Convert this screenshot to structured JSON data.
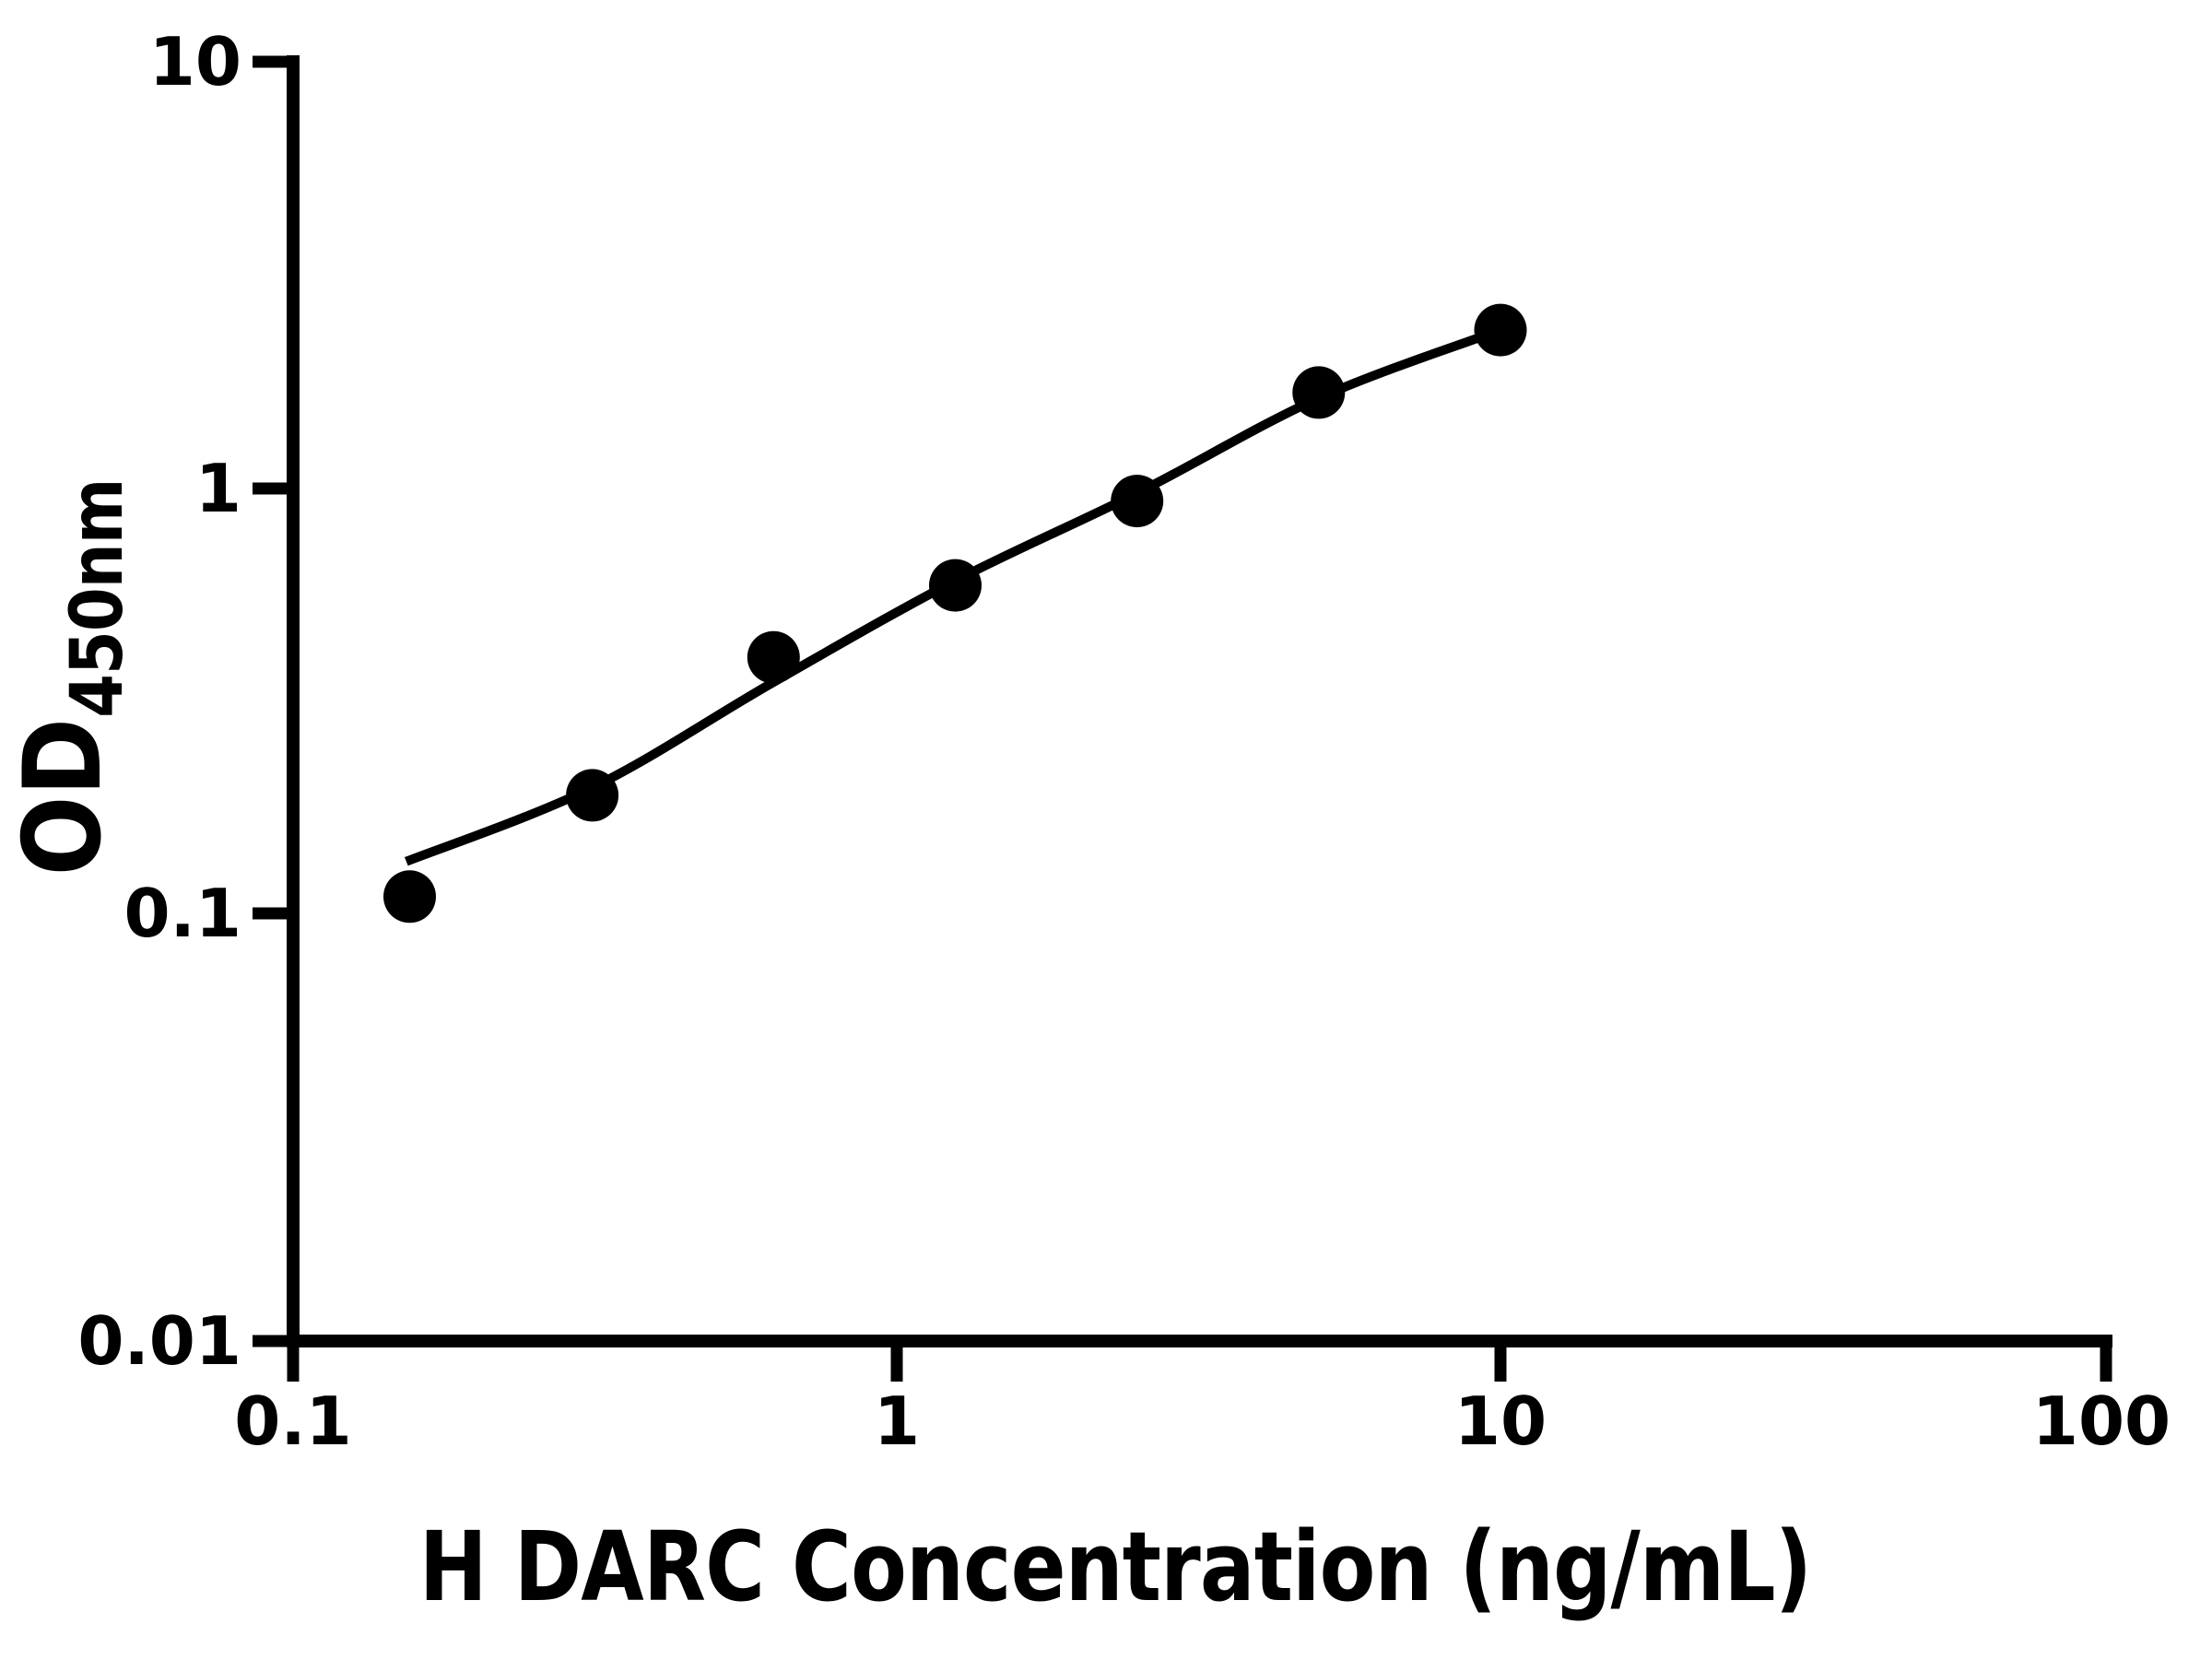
{
  "figure": {
    "background_color": "#ffffff",
    "ink_color": "#000000"
  },
  "chart_data": {
    "type": "scatter",
    "title": "",
    "xlabel": "H DARC Concentration (ng/mL)",
    "ylabel_main": "OD",
    "ylabel_sub": "450nm",
    "x_scale": "log",
    "y_scale": "log",
    "xlim": [
      0.1,
      100
    ],
    "ylim": [
      0.01,
      10
    ],
    "grid": "off",
    "legend": "none",
    "x_ticks": [
      "0.1",
      "1",
      "10",
      "100"
    ],
    "y_ticks": [
      "10",
      "1",
      "0.1",
      "0.01"
    ],
    "series": [
      {
        "name": "standard-points",
        "style": "filled-circle-markers",
        "color": "#000000",
        "x": [
          0.156,
          0.313,
          0.625,
          1.25,
          2.5,
          5,
          10
        ],
        "y": [
          0.11,
          0.19,
          0.4,
          0.59,
          0.93,
          1.67,
          2.34
        ]
      },
      {
        "name": "fitted-curve",
        "style": "smooth-line",
        "color": "#000000",
        "x": [
          0.154,
          0.313,
          0.625,
          1.25,
          2.5,
          5,
          10
        ],
        "y": [
          0.133,
          0.198,
          0.35,
          0.605,
          0.97,
          1.62,
          2.34
        ]
      }
    ]
  }
}
